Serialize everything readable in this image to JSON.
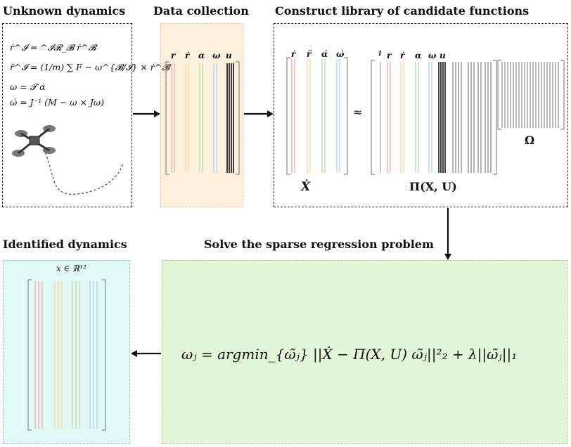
{
  "titles": {
    "unknown": "Unknown dynamics",
    "data": "Data collection",
    "library": "Construct library of candidate functions",
    "identified": "Identified dynamics",
    "solve": "Solve the sparse regression problem"
  },
  "equations": {
    "eq1": "ṙ^𝓘 = ^𝓘𝓡_𝓑 ṙ^𝓑",
    "eq2": "r̈^𝓘 = (1/m) ∑ F − ω^{𝓑/𝓘} × ṙ^𝓑",
    "eq3": "ω = 𝓣 α̇",
    "eq4": "ω̇ = J⁻¹ (M − ω × Jω)"
  },
  "data_headers": [
    "r",
    "ṙ",
    "α",
    "ω",
    "u"
  ],
  "lhs_headers": [
    "ṙ",
    "r̈",
    "α̇",
    "ω̇"
  ],
  "lib_headers": [
    "1",
    "r",
    "ṙ",
    "α",
    "ω",
    "u"
  ],
  "labels": {
    "xdot": "Ẋ",
    "approx": "≈",
    "pi": "Π(X, U)",
    "omega_mat": "Ω",
    "state_space": "x ∈ ℝ¹²",
    "regression": "ωⱼ = argmin_{ω̃ⱼ} ||Ẋ − Π(X, U) ω̃ⱼ||²₂ + λ||ω̃ⱼ||₁"
  },
  "colors": {
    "r": "#f4b8b8",
    "rdot": "#f8dcae",
    "alpha": "#c6e2b2",
    "omega": "#b8dcf2",
    "u": "#111111",
    "data_bg": "#fdf0dc",
    "solve_bg": "#e2f6d8",
    "identified_bg": "#e0f8f6"
  }
}
